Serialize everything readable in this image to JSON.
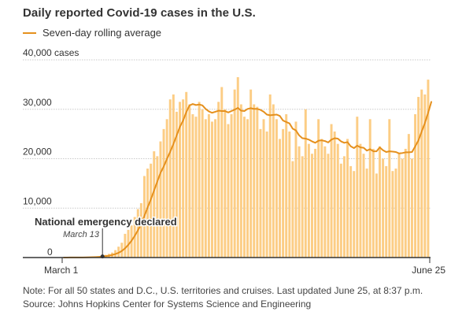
{
  "title": "Daily reported Covid-19 cases in the U.S.",
  "legend": {
    "label": "Seven-day rolling average",
    "color": "#e5901d"
  },
  "note": "Note: For all 50 states and D.C., U.S. territories and cruises. Last updated June 25, at 8:37 p.m.",
  "source": "Source: Johns Hopkins Center for Systems Science and Engineering",
  "colors": {
    "bar": "#fccd85",
    "line": "#e5901d",
    "grid": "#c9c9c9",
    "axis": "#333333"
  },
  "chart_data": {
    "type": "bar",
    "x_start_label": "March 1",
    "x_end_label": "June 25",
    "ylim": [
      0,
      40000
    ],
    "y_ticks": [
      {
        "value": 0,
        "label": "0"
      },
      {
        "value": 10000,
        "label": "10,000"
      },
      {
        "value": 20000,
        "label": "20,000"
      },
      {
        "value": 30000,
        "label": "30,000"
      },
      {
        "value": 40000,
        "label": "40,000 cases"
      }
    ],
    "grid": true,
    "annotation": {
      "label": "National emergency declared",
      "date_label": "March 13",
      "day_index": 12
    },
    "series": [
      {
        "kind": "bar",
        "values": [
          5,
          10,
          15,
          20,
          25,
          30,
          40,
          60,
          80,
          120,
          200,
          300,
          420,
          550,
          750,
          1000,
          1500,
          2200,
          3000,
          4800,
          5600,
          6500,
          8200,
          9800,
          11000,
          16500,
          18000,
          19000,
          21500,
          20500,
          23500,
          26000,
          28000,
          32000,
          33000,
          29500,
          31500,
          32000,
          33500,
          31000,
          29000,
          28500,
          31500,
          30000,
          28000,
          29000,
          27500,
          28000,
          31500,
          34500,
          30000,
          27000,
          29000,
          34000,
          36500,
          31000,
          28500,
          28000,
          34000,
          31000,
          30500,
          26000,
          28000,
          25500,
          33000,
          31000,
          28000,
          24000,
          26000,
          29000,
          25500,
          19500,
          27500,
          22500,
          20500,
          30000,
          23000,
          21000,
          22000,
          28000,
          24000,
          22500,
          21000,
          27000,
          25500,
          23000,
          19000,
          20500,
          24000,
          18500,
          17500,
          28500,
          23000,
          21000,
          18000,
          28000,
          22000,
          17000,
          22500,
          20000,
          18500,
          28000,
          17500,
          18000,
          21000,
          20000,
          22000,
          25000,
          20000,
          29000,
          32500,
          34000,
          33000,
          36000
        ]
      },
      {
        "kind": "line",
        "name": "Seven-day rolling average",
        "values": [
          5,
          8,
          11,
          15,
          18,
          22,
          28,
          38,
          52,
          74,
          105,
          149,
          214,
          290,
          383,
          521,
          706,
          960,
          1339,
          1862,
          2562,
          3389,
          4381,
          5527,
          6751,
          8433,
          10129,
          11764,
          13564,
          15371,
          17143,
          18429,
          19971,
          21386,
          22971,
          24693,
          26429,
          27714,
          29421,
          30786,
          31071,
          30857,
          30964,
          30786,
          30071,
          29571,
          29286,
          29500,
          29714,
          29643,
          29643,
          29357,
          29643,
          29929,
          30286,
          29714,
          29643,
          30071,
          30214,
          30071,
          30071,
          29886,
          29500,
          28929,
          28786,
          28857,
          28929,
          28657,
          27714,
          27429,
          27143,
          26071,
          25714,
          24714,
          24143,
          24071,
          23857,
          23500,
          23214,
          23643,
          23714,
          23571,
          23286,
          23857,
          24143,
          24071,
          23500,
          23214,
          23357,
          22500,
          22143,
          22643,
          22286,
          22214,
          21643,
          21929,
          21500,
          21500,
          22286,
          21714,
          21357,
          21500,
          21429,
          21357,
          21071,
          21143,
          21286,
          21286,
          21357,
          22500,
          23714,
          25500,
          27214,
          29286,
          31500
        ]
      }
    ]
  }
}
